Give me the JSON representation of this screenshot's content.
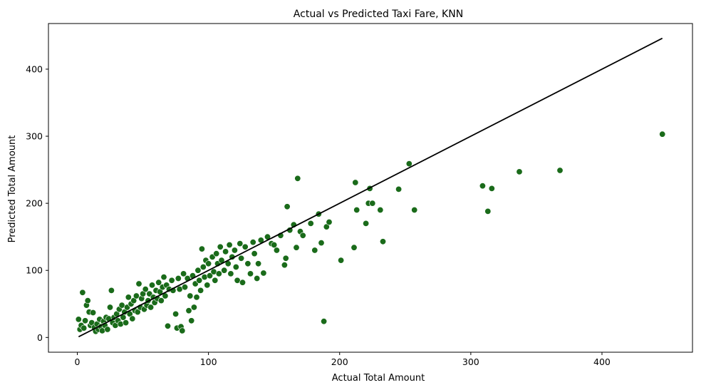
{
  "chart_data": {
    "type": "scatter",
    "title": "Actual vs Predicted Taxi Fare, KNN",
    "xlabel": "Actual Total Amount",
    "ylabel": "Predicted Total Amount",
    "xlim": [
      -22,
      469
    ],
    "ylim": [
      -22,
      468
    ],
    "xticks": [
      0,
      100,
      200,
      300,
      400
    ],
    "yticks": [
      0,
      100,
      200,
      300,
      400
    ],
    "grid": false,
    "point_color": "#1a6b1a",
    "point_edge_color": "#ffffff",
    "line_color": "#000000",
    "reference_line": {
      "x": [
        1,
        446
      ],
      "y": [
        1,
        446
      ]
    },
    "points": [
      [
        1,
        27
      ],
      [
        2,
        12
      ],
      [
        3,
        18
      ],
      [
        4,
        67
      ],
      [
        5,
        14
      ],
      [
        6,
        25
      ],
      [
        7,
        48
      ],
      [
        8,
        55
      ],
      [
        9,
        38
      ],
      [
        10,
        18
      ],
      [
        11,
        22
      ],
      [
        12,
        37
      ],
      [
        13,
        15
      ],
      [
        14,
        9
      ],
      [
        15,
        20
      ],
      [
        16,
        12
      ],
      [
        17,
        27
      ],
      [
        18,
        16
      ],
      [
        19,
        10
      ],
      [
        20,
        24
      ],
      [
        21,
        18
      ],
      [
        22,
        30
      ],
      [
        23,
        12
      ],
      [
        24,
        28
      ],
      [
        25,
        45
      ],
      [
        26,
        70
      ],
      [
        27,
        22
      ],
      [
        28,
        30
      ],
      [
        29,
        18
      ],
      [
        30,
        35
      ],
      [
        31,
        25
      ],
      [
        32,
        42
      ],
      [
        33,
        20
      ],
      [
        34,
        48
      ],
      [
        35,
        30
      ],
      [
        36,
        38
      ],
      [
        37,
        22
      ],
      [
        38,
        45
      ],
      [
        39,
        60
      ],
      [
        40,
        35
      ],
      [
        41,
        50
      ],
      [
        42,
        28
      ],
      [
        43,
        55
      ],
      [
        44,
        40
      ],
      [
        45,
        62
      ],
      [
        46,
        38
      ],
      [
        47,
        80
      ],
      [
        48,
        45
      ],
      [
        49,
        58
      ],
      [
        50,
        65
      ],
      [
        51,
        42
      ],
      [
        52,
        72
      ],
      [
        53,
        48
      ],
      [
        54,
        55
      ],
      [
        55,
        65
      ],
      [
        56,
        45
      ],
      [
        57,
        78
      ],
      [
        58,
        60
      ],
      [
        59,
        52
      ],
      [
        60,
        70
      ],
      [
        61,
        58
      ],
      [
        62,
        82
      ],
      [
        63,
        68
      ],
      [
        64,
        55
      ],
      [
        65,
        75
      ],
      [
        66,
        90
      ],
      [
        67,
        62
      ],
      [
        68,
        78
      ],
      [
        69,
        17
      ],
      [
        70,
        72
      ],
      [
        72,
        85
      ],
      [
        73,
        70
      ],
      [
        75,
        35
      ],
      [
        76,
        14
      ],
      [
        77,
        88
      ],
      [
        78,
        72
      ],
      [
        79,
        16
      ],
      [
        80,
        10
      ],
      [
        81,
        95
      ],
      [
        82,
        75
      ],
      [
        84,
        88
      ],
      [
        85,
        40
      ],
      [
        86,
        62
      ],
      [
        87,
        25
      ],
      [
        88,
        92
      ],
      [
        89,
        45
      ],
      [
        90,
        80
      ],
      [
        91,
        60
      ],
      [
        92,
        100
      ],
      [
        93,
        85
      ],
      [
        94,
        70
      ],
      [
        95,
        132
      ],
      [
        96,
        105
      ],
      [
        97,
        90
      ],
      [
        98,
        115
      ],
      [
        99,
        78
      ],
      [
        100,
        110
      ],
      [
        101,
        92
      ],
      [
        103,
        120
      ],
      [
        104,
        98
      ],
      [
        105,
        85
      ],
      [
        106,
        125
      ],
      [
        107,
        110
      ],
      [
        108,
        95
      ],
      [
        109,
        135
      ],
      [
        110,
        115
      ],
      [
        112,
        100
      ],
      [
        113,
        128
      ],
      [
        115,
        110
      ],
      [
        116,
        138
      ],
      [
        117,
        95
      ],
      [
        118,
        120
      ],
      [
        120,
        130
      ],
      [
        121,
        105
      ],
      [
        122,
        85
      ],
      [
        124,
        140
      ],
      [
        125,
        118
      ],
      [
        126,
        82
      ],
      [
        128,
        135
      ],
      [
        130,
        110
      ],
      [
        132,
        95
      ],
      [
        134,
        142
      ],
      [
        135,
        125
      ],
      [
        137,
        88
      ],
      [
        138,
        110
      ],
      [
        140,
        145
      ],
      [
        142,
        96
      ],
      [
        145,
        150
      ],
      [
        148,
        140
      ],
      [
        150,
        138
      ],
      [
        152,
        130
      ],
      [
        155,
        152
      ],
      [
        158,
        108
      ],
      [
        159,
        118
      ],
      [
        160,
        195
      ],
      [
        162,
        160
      ],
      [
        165,
        168
      ],
      [
        167,
        134
      ],
      [
        168,
        237
      ],
      [
        170,
        158
      ],
      [
        172,
        152
      ],
      [
        178,
        170
      ],
      [
        181,
        130
      ],
      [
        184,
        184
      ],
      [
        186,
        141
      ],
      [
        188,
        24
      ],
      [
        190,
        165
      ],
      [
        192,
        172
      ],
      [
        201,
        115
      ],
      [
        211,
        134
      ],
      [
        212,
        231
      ],
      [
        213,
        190
      ],
      [
        220,
        170
      ],
      [
        222,
        200
      ],
      [
        223,
        222
      ],
      [
        225,
        200
      ],
      [
        231,
        190
      ],
      [
        233,
        143
      ],
      [
        245,
        221
      ],
      [
        253,
        259
      ],
      [
        257,
        190
      ],
      [
        309,
        226
      ],
      [
        313,
        188
      ],
      [
        316,
        222
      ],
      [
        337,
        247
      ],
      [
        368,
        249
      ],
      [
        446,
        303
      ]
    ]
  }
}
